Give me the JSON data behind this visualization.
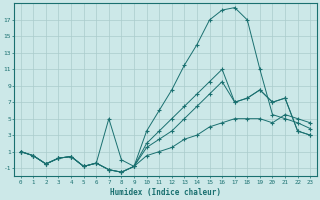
{
  "background_color": "#cce8e8",
  "grid_color": "#aacccc",
  "line_color": "#1a7070",
  "xlabel": "Humidex (Indice chaleur)",
  "xlim": [
    -0.5,
    23.5
  ],
  "ylim": [
    -2.0,
    19.0
  ],
  "yticks": [
    -1,
    1,
    3,
    5,
    7,
    9,
    11,
    13,
    15,
    17
  ],
  "xticks": [
    0,
    1,
    2,
    3,
    4,
    5,
    6,
    7,
    8,
    9,
    10,
    11,
    12,
    13,
    14,
    15,
    16,
    17,
    18,
    19,
    20,
    21,
    22,
    23
  ],
  "line_peak_x": [
    0,
    1,
    2,
    3,
    4,
    5,
    6,
    7,
    8,
    9,
    10,
    11,
    12,
    13,
    14,
    15,
    16,
    17,
    18,
    19,
    20,
    21,
    22,
    23
  ],
  "line_peak_y": [
    1.0,
    0.5,
    -0.5,
    0.2,
    0.4,
    -0.8,
    -0.4,
    -1.2,
    -1.5,
    -0.8,
    3.5,
    6.0,
    8.5,
    11.5,
    14.0,
    17.0,
    18.2,
    18.5,
    17.0,
    11.0,
    5.5,
    5.0,
    4.5,
    3.8
  ],
  "line_mid_x": [
    0,
    1,
    2,
    3,
    4,
    5,
    6,
    7,
    8,
    9,
    10,
    11,
    12,
    13,
    14,
    15,
    16,
    17,
    18,
    19,
    20,
    21,
    22,
    23
  ],
  "line_mid_y": [
    1.0,
    0.5,
    -0.5,
    0.2,
    0.4,
    -0.8,
    -0.4,
    -1.2,
    -1.5,
    -0.8,
    2.0,
    3.5,
    5.0,
    6.5,
    8.0,
    9.5,
    11.0,
    7.0,
    7.5,
    8.5,
    7.0,
    7.5,
    3.5,
    3.0
  ],
  "line_upper_x": [
    0,
    1,
    2,
    3,
    4,
    5,
    6,
    7,
    8,
    9,
    10,
    11,
    12,
    13,
    14,
    15,
    16,
    17,
    18,
    19,
    20,
    21,
    22,
    23
  ],
  "line_upper_y": [
    1.0,
    0.5,
    -0.5,
    0.2,
    0.4,
    -0.8,
    -0.4,
    5.0,
    0.0,
    -0.8,
    1.5,
    2.5,
    3.5,
    5.0,
    6.5,
    8.0,
    9.5,
    7.0,
    7.5,
    8.5,
    7.0,
    7.5,
    3.5,
    3.0
  ],
  "line_flat_x": [
    0,
    1,
    2,
    3,
    4,
    5,
    6,
    7,
    8,
    9,
    10,
    11,
    12,
    13,
    14,
    15,
    16,
    17,
    18,
    19,
    20,
    21,
    22,
    23
  ],
  "line_flat_y": [
    1.0,
    0.5,
    -0.5,
    0.2,
    0.4,
    -0.8,
    -0.4,
    -1.2,
    -1.5,
    -0.8,
    0.5,
    1.0,
    1.5,
    2.5,
    3.0,
    4.0,
    4.5,
    5.0,
    5.0,
    5.0,
    4.5,
    5.5,
    5.0,
    4.5
  ]
}
